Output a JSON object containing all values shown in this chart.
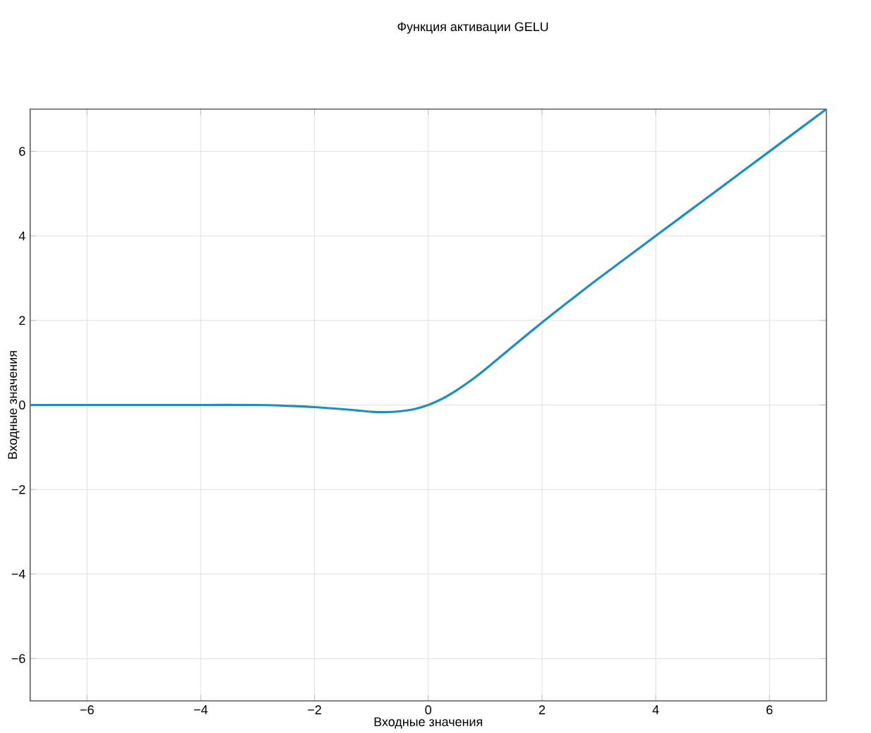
{
  "chart_data": {
    "type": "line",
    "title": "Функция активации GELU",
    "xlabel": "Входные значения",
    "ylabel": "Входные значения",
    "x": [
      -7,
      -6,
      -5,
      -4,
      -3,
      -2.5,
      -2,
      -1.5,
      -1,
      -0.75,
      -0.5,
      -0.25,
      0,
      0.25,
      0.5,
      0.75,
      1,
      1.5,
      2,
      2.5,
      3,
      4,
      5,
      6,
      7
    ],
    "series": [
      {
        "color": "#1f8ebf",
        "values": [
          0,
          0,
          0,
          0,
          0,
          -0.02,
          -0.05,
          -0.1,
          -0.16,
          -0.17,
          -0.15,
          -0.1,
          0,
          0.15,
          0.35,
          0.58,
          0.84,
          1.4,
          1.95,
          2.48,
          3,
          4,
          5,
          6,
          7
        ]
      }
    ],
    "xlim": [
      -7,
      7
    ],
    "ylim": [
      -7,
      7
    ],
    "xticks": [
      {
        "value": -6,
        "label": "−6"
      },
      {
        "value": -4,
        "label": "−4"
      },
      {
        "value": -2,
        "label": "−2"
      },
      0,
      2,
      4,
      6
    ],
    "yticks": [
      {
        "value": -6,
        "label": "−6"
      },
      {
        "value": -4,
        "label": "−4"
      },
      {
        "value": -2,
        "label": "−2"
      },
      0,
      2,
      4,
      6
    ],
    "grid": true
  }
}
